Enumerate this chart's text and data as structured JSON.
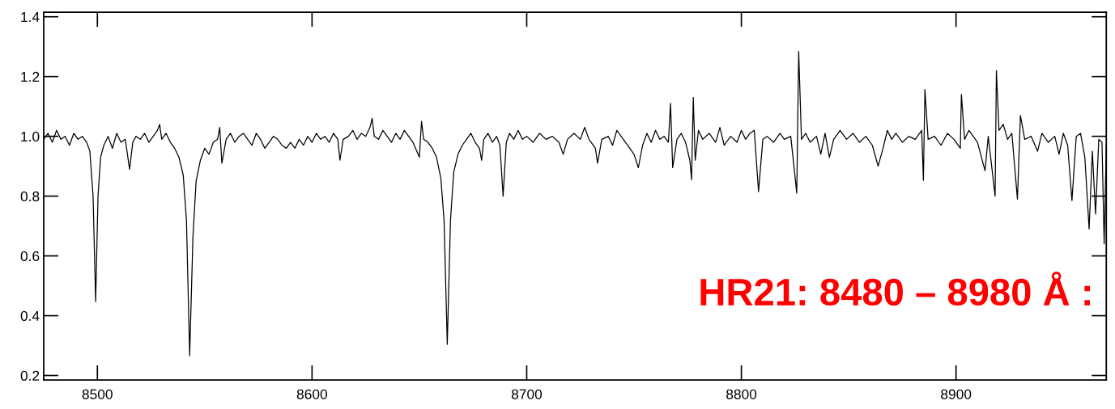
{
  "chart_data": {
    "type": "line",
    "x": [
      8475,
      8477,
      8479,
      8481,
      8483,
      8485,
      8487,
      8489,
      8491,
      8493,
      8495,
      8496.5,
      8498,
      8499.2,
      8500.3,
      8501.5,
      8503,
      8505,
      8507,
      8509,
      8511,
      8513,
      8515,
      8516.5,
      8518,
      8520,
      8522,
      8524,
      8526,
      8528,
      8529,
      8530,
      8532,
      8534,
      8536,
      8538,
      8540,
      8541.5,
      8543,
      8544.5,
      8546,
      8548,
      8550,
      8552,
      8554,
      8556,
      8557,
      8558,
      8560,
      8562,
      8564,
      8566,
      8568,
      8570,
      8572,
      8574,
      8576,
      8578,
      8580,
      8582,
      8584,
      8586,
      8588,
      8590,
      8592,
      8594,
      8596,
      8598,
      8600,
      8602,
      8604,
      8606,
      8608,
      8610,
      8612,
      8613,
      8614.5,
      8617,
      8619,
      8621,
      8623,
      8625,
      8627,
      8628,
      8629,
      8631,
      8633,
      8635,
      8637,
      8639,
      8641,
      8643,
      8645,
      8647,
      8650,
      8651,
      8652,
      8654,
      8656,
      8658,
      8660,
      8661.5,
      8663,
      8664.5,
      8666,
      8668,
      8670,
      8672,
      8674,
      8676,
      8678,
      8679,
      8680,
      8682,
      8684,
      8686,
      8687.5,
      8689,
      8690.5,
      8692,
      8694,
      8696,
      8698,
      8700,
      8703,
      8706,
      8709,
      8712,
      8715,
      8717,
      8719,
      8722,
      8725,
      8727,
      8729,
      8732,
      8733,
      8735,
      8738,
      8740,
      8742,
      8745,
      8748,
      8750,
      8752,
      8754,
      8756,
      8758,
      8760,
      8762,
      8764,
      8766,
      8767,
      8768,
      8770,
      8772,
      8774,
      8776,
      8776.8,
      8777.6,
      8778.5,
      8780,
      8782,
      8785,
      8788,
      8790,
      8792,
      8795,
      8798,
      8800,
      8802,
      8804,
      8806,
      8808,
      8810,
      8812,
      8815,
      8818,
      8820,
      8823,
      8825.8,
      8826.7,
      8828,
      8830,
      8832,
      8835,
      8837,
      8839,
      8841,
      8843,
      8846,
      8849,
      8852,
      8855,
      8858,
      8861,
      8863.7,
      8866,
      8868,
      8870,
      8872,
      8875,
      8878,
      8881,
      8884,
      8884.8,
      8885.5,
      8887,
      8890,
      8893,
      8896,
      8899,
      8902,
      8902.5,
      8904,
      8906,
      8908,
      8910,
      8913.5,
      8915,
      8918.2,
      8918.8,
      8920,
      8922,
      8924,
      8926,
      8928.6,
      8930,
      8932,
      8935,
      8938,
      8940,
      8943,
      8946,
      8948,
      8950,
      8952,
      8954,
      8956,
      8958,
      8960,
      8962,
      8963.5,
      8965,
      8966.5,
      8968,
      8969,
      8970
    ],
    "series": [
      {
        "color": "#000000",
        "values": [
          0.99,
          1.01,
          0.98,
          1.02,
          0.99,
          1.0,
          0.97,
          1.01,
          0.99,
          1.0,
          0.98,
          0.95,
          0.8,
          0.447,
          0.8,
          0.93,
          0.97,
          1.0,
          0.96,
          1.01,
          0.98,
          0.99,
          0.89,
          0.98,
          1.0,
          0.99,
          1.01,
          0.98,
          1.0,
          1.02,
          1.04,
          0.99,
          1.01,
          0.98,
          0.96,
          0.93,
          0.87,
          0.72,
          0.266,
          0.66,
          0.85,
          0.92,
          0.96,
          0.94,
          0.98,
          0.99,
          1.03,
          0.91,
          0.99,
          1.01,
          0.98,
          1.0,
          1.01,
          0.99,
          0.97,
          1.01,
          0.99,
          0.96,
          0.98,
          1.0,
          0.99,
          0.97,
          0.96,
          0.98,
          0.96,
          0.99,
          0.97,
          1.0,
          0.98,
          1.01,
          0.99,
          1.0,
          0.98,
          1.01,
          0.99,
          0.92,
          0.99,
          1.0,
          1.02,
          0.99,
          1.01,
          1.0,
          1.03,
          1.06,
          1.0,
          0.99,
          1.02,
          1.0,
          0.98,
          1.01,
          0.99,
          1.02,
          1.0,
          0.98,
          0.93,
          1.05,
          0.99,
          0.98,
          0.96,
          0.93,
          0.86,
          0.72,
          0.304,
          0.72,
          0.88,
          0.94,
          0.97,
          0.99,
          1.01,
          0.98,
          0.96,
          0.92,
          0.99,
          1.01,
          0.98,
          1.0,
          0.97,
          0.8,
          0.98,
          1.01,
          0.99,
          1.02,
          0.99,
          1.0,
          0.98,
          1.01,
          0.99,
          1.0,
          0.98,
          0.94,
          0.99,
          1.01,
          0.99,
          1.03,
          0.99,
          0.96,
          0.91,
          0.99,
          1.0,
          0.97,
          1.02,
          0.99,
          0.96,
          0.94,
          0.895,
          0.97,
          1.01,
          0.98,
          1.02,
          0.99,
          1.0,
          0.98,
          1.11,
          0.895,
          0.99,
          1.01,
          0.98,
          0.92,
          0.855,
          1.13,
          0.92,
          1.02,
          0.99,
          1.01,
          0.98,
          1.03,
          0.97,
          1.0,
          0.98,
          1.02,
          0.99,
          1.01,
          1.02,
          0.815,
          0.99,
          1.0,
          0.98,
          1.01,
          0.99,
          1.0,
          0.81,
          1.284,
          0.99,
          1.01,
          0.98,
          1.0,
          0.94,
          1.01,
          0.93,
          0.99,
          1.02,
          0.99,
          1.01,
          0.98,
          1.0,
          0.97,
          0.9,
          0.96,
          1.02,
          0.99,
          1.01,
          0.98,
          1.0,
          0.99,
          1.02,
          0.853,
          1.157,
          0.99,
          1.0,
          0.97,
          1.01,
          0.99,
          0.96,
          1.14,
          0.99,
          1.02,
          1.0,
          0.98,
          0.885,
          1.0,
          0.8,
          1.22,
          1.02,
          1.04,
          0.99,
          1.01,
          0.79,
          1.07,
          0.99,
          1.0,
          0.95,
          1.01,
          0.98,
          1.0,
          0.94,
          1.01,
          0.97,
          0.785,
          1.0,
          1.01,
          0.93,
          0.69,
          0.95,
          0.74,
          0.99,
          0.98,
          0.64,
          0.97
        ]
      }
    ],
    "xlim": [
      8475,
      8970
    ],
    "ylim": [
      0.185,
      1.415
    ],
    "xticks": [
      8500,
      8600,
      8700,
      8800,
      8900
    ],
    "yticks": [
      0.2,
      0.4,
      0.6,
      0.8,
      {
        "value": 1,
        "label": "1.0"
      },
      1.2,
      1.4
    ],
    "annotations": [
      "HR21: 8480 – 8980 Å :"
    ],
    "grid": false,
    "legend": false,
    "marker": "none",
    "line_style": "solid"
  }
}
